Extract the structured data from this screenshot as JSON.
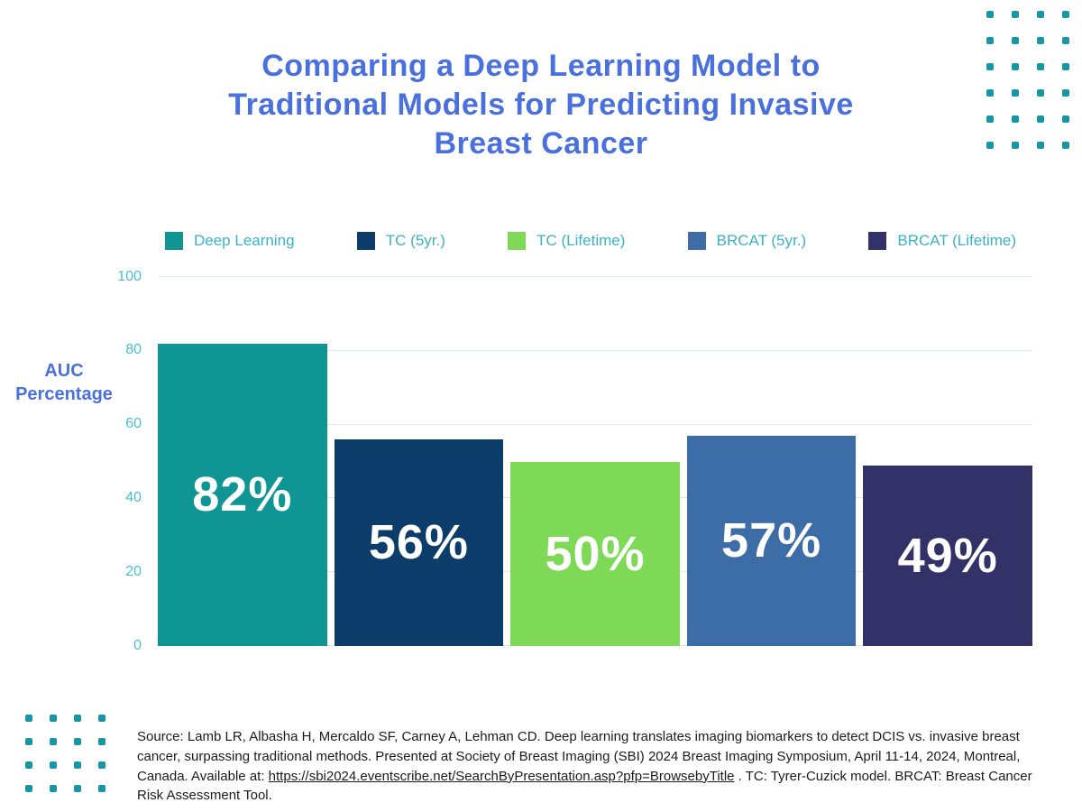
{
  "title": "Comparing a Deep Learning Model to Traditional Models for Predicting Invasive Breast Cancer",
  "axis": {
    "y_label_line1": "AUC",
    "y_label_line2": "Percentage"
  },
  "chart_data": {
    "type": "bar",
    "title": "Comparing a Deep Learning Model to Traditional Models for Predicting Invasive Breast Cancer",
    "categories": [
      "Deep Learning",
      "TC (5yr.)",
      "TC (Lifetime)",
      "BRCAT (5yr.)",
      "BRCAT (Lifetime)"
    ],
    "values": [
      82,
      56,
      50,
      57,
      49
    ],
    "data_labels": [
      "82%",
      "56%",
      "50%",
      "57%",
      "49%"
    ],
    "bar_colors": [
      "#0e9594",
      "#0c3c69",
      "#7ed957",
      "#3d6da6",
      "#333268"
    ],
    "ylabel": "AUC Percentage",
    "yticks": [
      0,
      20,
      40,
      60,
      80,
      100
    ],
    "ylim": [
      0,
      100
    ],
    "grid": true,
    "legend_position": "top",
    "legend": [
      {
        "label": "Deep Learning",
        "color": "#0e9594"
      },
      {
        "label": "TC (5yr.)",
        "color": "#0c3c69"
      },
      {
        "label": "TC (Lifetime)",
        "color": "#7ed957"
      },
      {
        "label": "BRCAT (5yr.)",
        "color": "#3d6da6"
      },
      {
        "label": "BRCAT (Lifetime)",
        "color": "#333268"
      }
    ]
  },
  "source": {
    "text_before": "Source: Lamb LR, Albasha H, Mercaldo SF, Carney A, Lehman CD. Deep learning translates imaging biomarkers to detect DCIS vs. invasive breast cancer, surpassing traditional methods. Presented at Society of Breast Imaging (SBI) 2024 Breast Imaging Symposium, April 11-14, 2024, Montreal, Canada. Available at: ",
    "link": "https://sbi2024.eventscribe.net/SearchByPresentation.asp?pfp=BrowsebyTitle",
    "text_after": " . TC: Tyrer-Cuzick model. BRCAT: Breast Cancer Risk Assessment Tool."
  },
  "colors": {
    "title": "#4a70dd",
    "axis_label": "#4a70dd",
    "tick": "#49c0d4",
    "legend_text": "#3ab3c6",
    "grid": "#dce9f3",
    "dots": "#1797a6"
  }
}
